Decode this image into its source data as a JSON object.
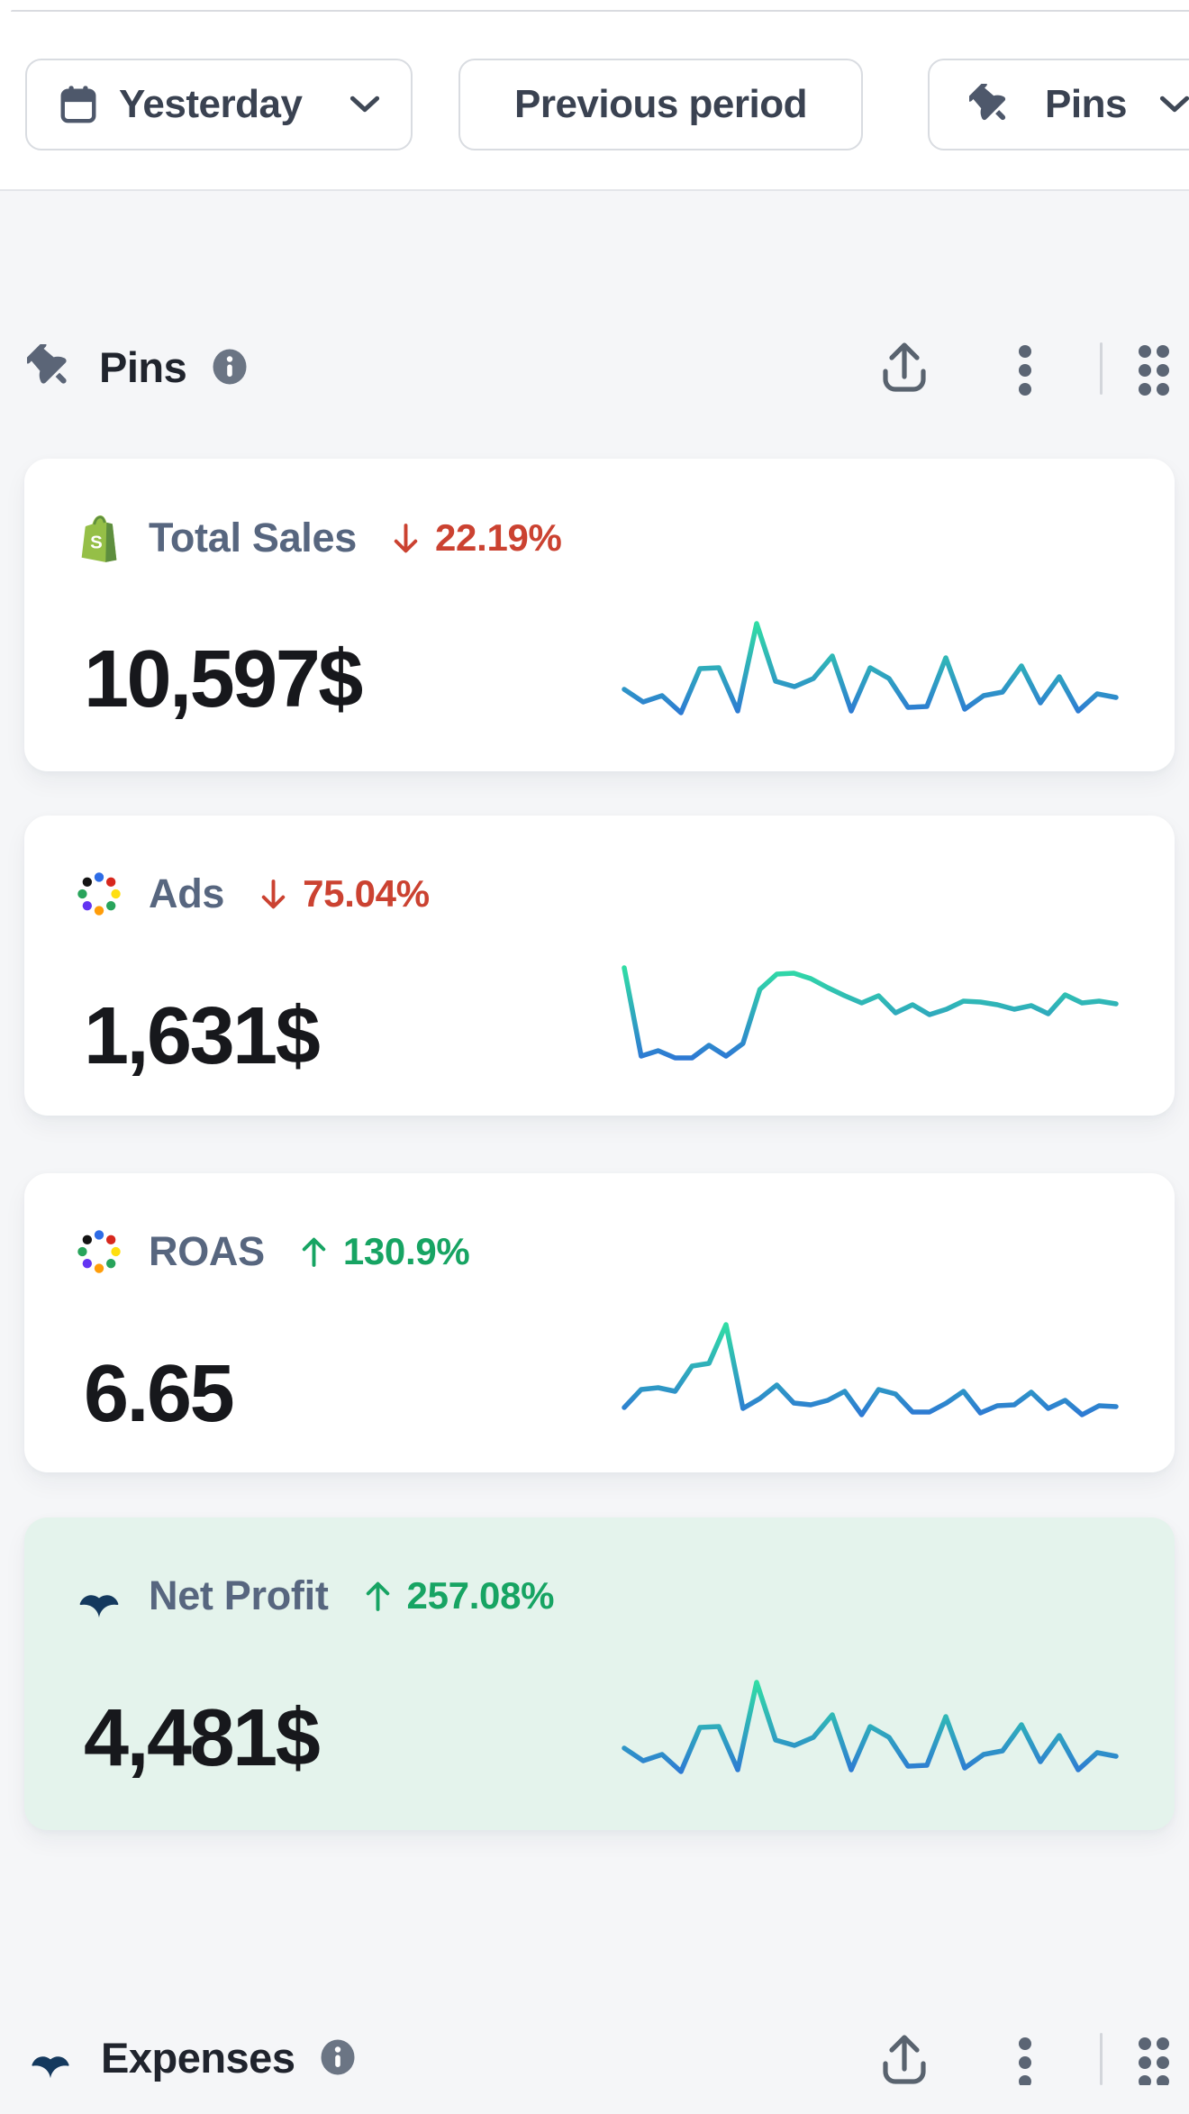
{
  "topbar": {
    "date_range_button": {
      "icon": "calendar-icon",
      "label": "Yesterday",
      "chevron": "chevron-down-icon"
    },
    "compare_button": {
      "label": "Previous period"
    },
    "metrics_dropdown_button": {
      "icon": "pin-icon",
      "label": "Pins",
      "chevron": "chevron-down-icon"
    }
  },
  "pins_section": {
    "title": "Pins",
    "info_icon": "info-icon",
    "tools": [
      "export-icon",
      "kebab-menu-icon",
      "drag-grid-icon"
    ]
  },
  "expenses_section": {
    "title": "Expenses",
    "info_icon": "info-icon",
    "tools": [
      "export-icon",
      "kebab-menu-icon",
      "drag-grid-icon"
    ]
  },
  "colors": {
    "page_bg": "#f5f6f8",
    "card_bg": "#ffffff",
    "highlight_card_bg": "#e4f3ec",
    "accent_red": "#cb4231",
    "accent_green": "#17a463",
    "spark_low": "#2d74d6",
    "spark_high": "#31e2a2",
    "label_slate": "#57667f",
    "icon_slate": "#5b6577"
  },
  "cards": [
    {
      "label": "Total Sales",
      "icon": "shopify",
      "delta_direction": "down",
      "delta": "22.19%",
      "value": "10,597$",
      "highlighted": false,
      "chart_index": 0
    },
    {
      "label": "Ads",
      "icon": "ads",
      "delta_direction": "down",
      "delta": "75.04%",
      "value": "1,631$",
      "highlighted": false,
      "chart_index": 1
    },
    {
      "label": "ROAS",
      "icon": "ads",
      "delta_direction": "up",
      "delta": "130.9%",
      "value": "6.65",
      "highlighted": false,
      "chart_index": 2
    },
    {
      "label": "Net Profit",
      "icon": "whale",
      "delta_direction": "up",
      "delta": "257.08%",
      "value": "4,481$",
      "highlighted": true,
      "chart_index": 3
    }
  ],
  "chart_data": [
    {
      "type": "line",
      "title": "Total Sales sparkline",
      "axes": "hidden",
      "legend": "none",
      "grid": false,
      "ylim": [
        0,
        1
      ],
      "values": [
        0.27,
        0.13,
        0.2,
        0.01,
        0.5,
        0.51,
        0.03,
        1.0,
        0.36,
        0.3,
        0.39,
        0.64,
        0.03,
        0.51,
        0.39,
        0.07,
        0.08,
        0.62,
        0.05,
        0.2,
        0.24,
        0.53,
        0.12,
        0.41,
        0.03,
        0.22,
        0.18
      ]
    },
    {
      "type": "line",
      "title": "Ads sparkline",
      "axes": "hidden",
      "legend": "none",
      "grid": false,
      "ylim": [
        0,
        1
      ],
      "values": [
        1.0,
        0.02,
        0.08,
        0.0,
        0.0,
        0.14,
        0.02,
        0.16,
        0.76,
        0.93,
        0.94,
        0.88,
        0.78,
        0.69,
        0.61,
        0.69,
        0.5,
        0.59,
        0.48,
        0.54,
        0.63,
        0.62,
        0.59,
        0.54,
        0.58,
        0.49,
        0.7,
        0.61,
        0.63,
        0.6
      ]
    },
    {
      "type": "line",
      "title": "ROAS sparkline",
      "axes": "hidden",
      "legend": "none",
      "grid": false,
      "ylim": [
        0,
        1
      ],
      "values": [
        0.08,
        0.28,
        0.3,
        0.26,
        0.54,
        0.57,
        1.0,
        0.07,
        0.18,
        0.33,
        0.13,
        0.11,
        0.16,
        0.26,
        0.0,
        0.28,
        0.23,
        0.03,
        0.03,
        0.13,
        0.26,
        0.02,
        0.1,
        0.11,
        0.25,
        0.07,
        0.16,
        0.0,
        0.1,
        0.09
      ]
    },
    {
      "type": "line",
      "title": "Net Profit sparkline",
      "axes": "hidden",
      "legend": "none",
      "grid": false,
      "ylim": [
        0,
        1
      ],
      "values": [
        0.27,
        0.13,
        0.2,
        0.01,
        0.5,
        0.51,
        0.03,
        1.0,
        0.36,
        0.3,
        0.39,
        0.64,
        0.03,
        0.51,
        0.39,
        0.07,
        0.08,
        0.62,
        0.05,
        0.2,
        0.24,
        0.53,
        0.12,
        0.41,
        0.03,
        0.22,
        0.18
      ]
    }
  ]
}
